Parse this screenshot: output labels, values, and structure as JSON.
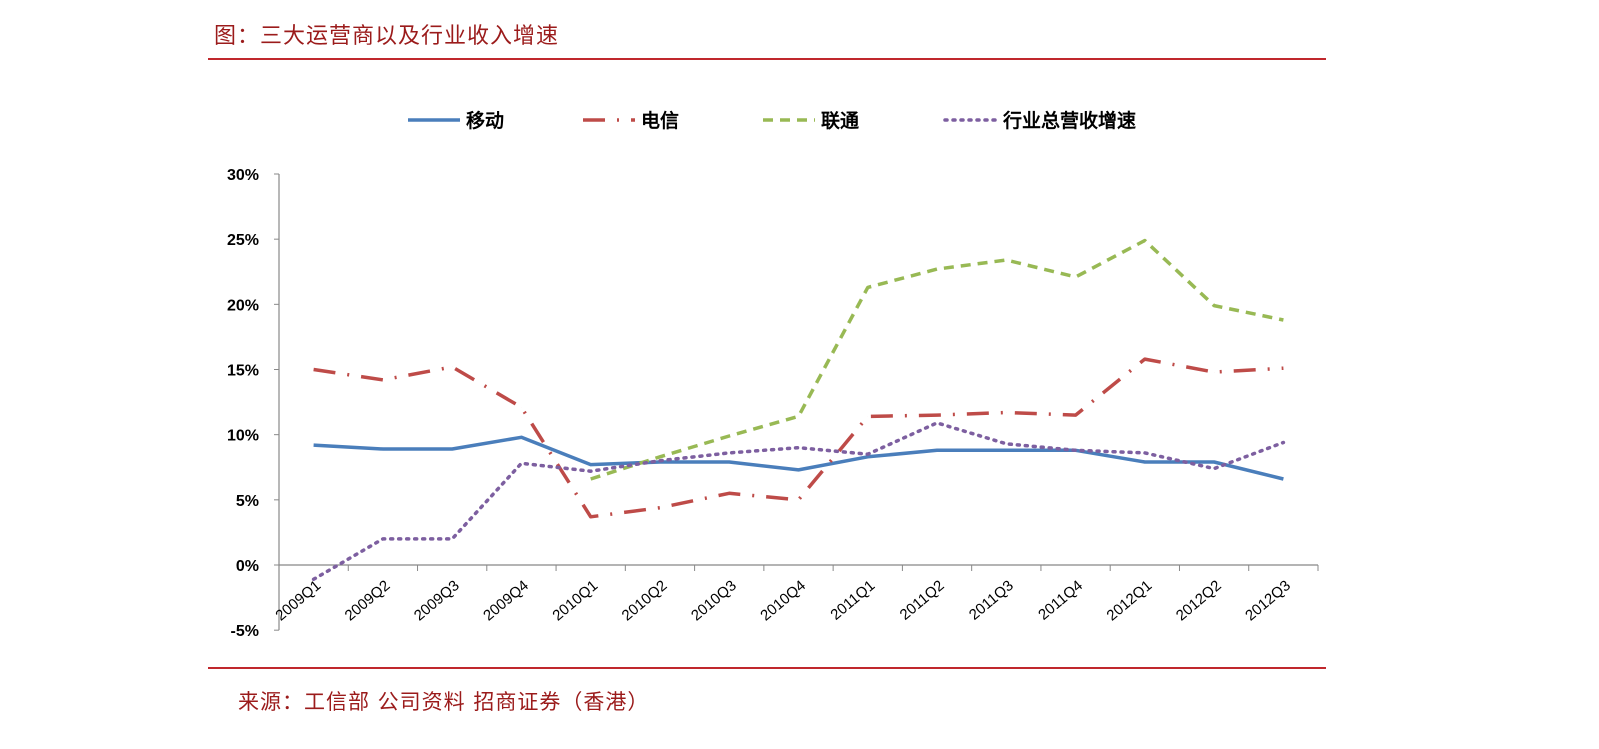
{
  "title": "图：三大运营商以及行业收入增速",
  "source": "来源：工信部 公司资料 招商证券（香港）",
  "chart_data": {
    "type": "line",
    "title": "",
    "xlabel": "",
    "ylabel": "",
    "ylim": [
      -5,
      30
    ],
    "y_ticks": [
      "-5%",
      "0%",
      "5%",
      "10%",
      "15%",
      "20%",
      "25%",
      "30%"
    ],
    "y_tick_values": [
      -5,
      0,
      5,
      10,
      15,
      20,
      25,
      30
    ],
    "grid": false,
    "legend_position": "top",
    "categories": [
      "2009Q1",
      "2009Q2",
      "2009Q3",
      "2009Q4",
      "2010Q1",
      "2010Q2",
      "2010Q3",
      "2010Q4",
      "2011Q1",
      "2011Q2",
      "2011Q3",
      "2011Q4",
      "2012Q1",
      "2012Q2",
      "2012Q3"
    ],
    "series": [
      {
        "name": "移动",
        "color": "#4a7ebb",
        "style": "solid",
        "values": [
          9.2,
          8.9,
          8.9,
          9.8,
          7.7,
          7.9,
          7.9,
          7.3,
          8.3,
          8.8,
          8.8,
          8.8,
          7.9,
          7.9,
          6.6
        ]
      },
      {
        "name": "电信",
        "color": "#be4b48",
        "style": "dash-dot",
        "values": [
          15.0,
          14.2,
          15.2,
          12.1,
          3.7,
          4.4,
          5.5,
          5.0,
          11.4,
          11.5,
          11.7,
          11.5,
          15.8,
          14.8,
          15.1
        ]
      },
      {
        "name": "联通",
        "color": "#98b954",
        "style": "dash",
        "values": [
          null,
          null,
          null,
          null,
          6.6,
          8.3,
          9.9,
          11.4,
          21.3,
          22.7,
          23.4,
          22.1,
          24.9,
          19.9,
          18.8
        ]
      },
      {
        "name": "行业总营收增速",
        "color": "#7d5fa0",
        "style": "dot",
        "values": [
          -1.1,
          2.0,
          2.0,
          7.8,
          7.2,
          8.0,
          8.6,
          9.0,
          8.5,
          10.9,
          9.3,
          8.8,
          8.6,
          7.4,
          9.4
        ]
      }
    ]
  }
}
